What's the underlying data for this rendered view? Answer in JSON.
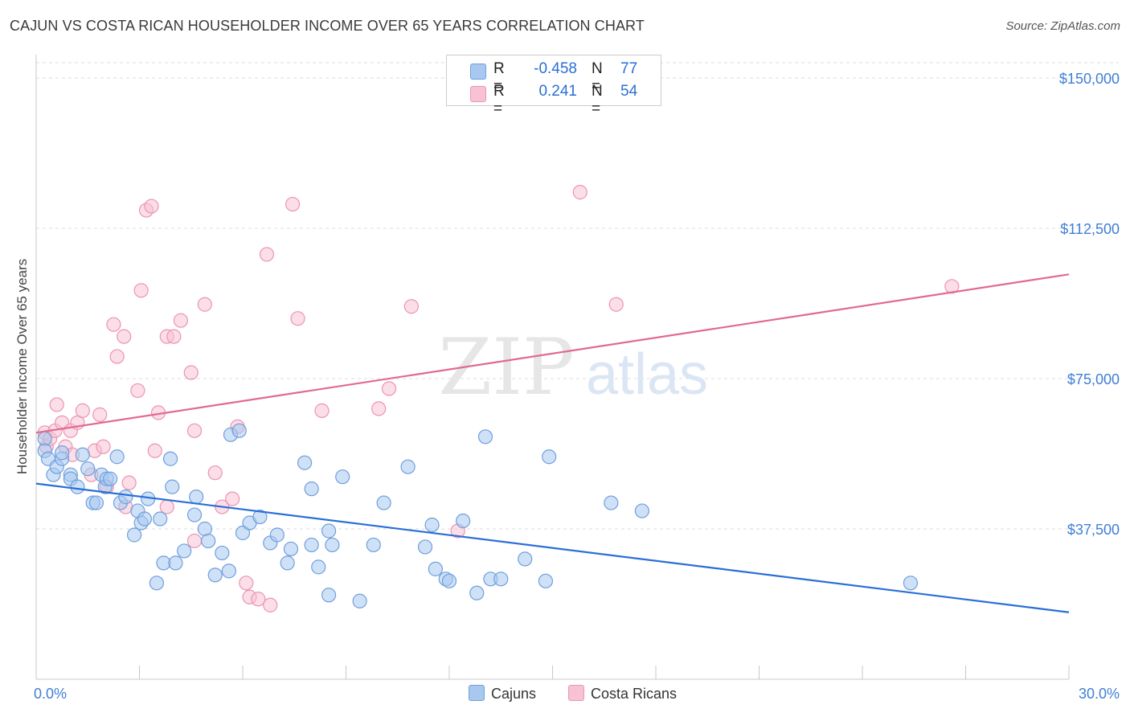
{
  "title": "CAJUN VS COSTA RICAN HOUSEHOLDER INCOME OVER 65 YEARS CORRELATION CHART",
  "source": "Source: ZipAtlas.com",
  "watermark": {
    "zip": "ZIP",
    "atlas": "atlas"
  },
  "colors": {
    "cajun_fill": "#a8c8f0",
    "cajun_stroke": "#6f9fdc",
    "cajun_line": "#2a6fd6",
    "costa_fill": "#f7c3d3",
    "costa_stroke": "#ec94b2",
    "costa_line": "#e06a90",
    "axis_text": "#3f7fd6",
    "grid": "#dddddd"
  },
  "stats": {
    "rows": [
      {
        "r_label": "R =",
        "r_value": "-0.458",
        "n_label": "N =",
        "n_value": "77"
      },
      {
        "r_label": "R =",
        "r_value": "0.241",
        "n_label": "N =",
        "n_value": "54"
      }
    ]
  },
  "legend": {
    "items": [
      {
        "label": "Cajuns"
      },
      {
        "label": "Costa Ricans"
      }
    ]
  },
  "chart_data": {
    "type": "scatter",
    "title": "CAJUN VS COSTA RICAN HOUSEHOLDER INCOME OVER 65 YEARS CORRELATION CHART",
    "xlabel": "",
    "ylabel": "Householder Income Over 65 years",
    "xlim": [
      0,
      30
    ],
    "ylim": [
      0,
      150000
    ],
    "x_tick_labels": [
      "0.0%",
      "30.0%"
    ],
    "y_ticks": [
      37500,
      75000,
      112500,
      150000
    ],
    "y_tick_labels": [
      "$37,500",
      "$75,000",
      "$112,500",
      "$150,000"
    ],
    "grid": true,
    "legend_position": "bottom-center",
    "series": [
      {
        "name": "Cajuns",
        "trend": {
          "x": [
            0,
            30
          ],
          "y": [
            48800,
            16700
          ]
        },
        "points": [
          [
            0.25,
            60000
          ],
          [
            0.25,
            57000
          ],
          [
            0.35,
            55000
          ],
          [
            0.5,
            51000
          ],
          [
            0.6,
            53000
          ],
          [
            0.75,
            55000
          ],
          [
            0.75,
            56500
          ],
          [
            1.0,
            51000
          ],
          [
            1.0,
            50000
          ],
          [
            1.2,
            48000
          ],
          [
            1.35,
            56000
          ],
          [
            1.5,
            52500
          ],
          [
            1.65,
            44000
          ],
          [
            1.75,
            44000
          ],
          [
            1.9,
            51000
          ],
          [
            2.0,
            48000
          ],
          [
            2.05,
            50000
          ],
          [
            2.15,
            50000
          ],
          [
            2.35,
            55500
          ],
          [
            2.45,
            44000
          ],
          [
            2.6,
            45500
          ],
          [
            2.85,
            36000
          ],
          [
            2.95,
            42000
          ],
          [
            3.05,
            39000
          ],
          [
            3.15,
            40000
          ],
          [
            3.25,
            45000
          ],
          [
            3.5,
            24000
          ],
          [
            3.6,
            40000
          ],
          [
            3.7,
            29000
          ],
          [
            3.9,
            55000
          ],
          [
            3.95,
            48000
          ],
          [
            4.05,
            29000
          ],
          [
            4.3,
            32000
          ],
          [
            4.6,
            41000
          ],
          [
            4.65,
            45500
          ],
          [
            4.9,
            37500
          ],
          [
            5.0,
            34500
          ],
          [
            5.2,
            26000
          ],
          [
            5.4,
            31500
          ],
          [
            5.65,
            61000
          ],
          [
            5.9,
            62000
          ],
          [
            5.6,
            27000
          ],
          [
            6.0,
            36500
          ],
          [
            6.2,
            39000
          ],
          [
            6.5,
            40500
          ],
          [
            6.8,
            34000
          ],
          [
            7.0,
            36000
          ],
          [
            7.3,
            29000
          ],
          [
            7.4,
            32500
          ],
          [
            7.8,
            54000
          ],
          [
            8.0,
            47500
          ],
          [
            8.2,
            28000
          ],
          [
            8.5,
            37000
          ],
          [
            8.0,
            33500
          ],
          [
            8.6,
            33500
          ],
          [
            8.9,
            50500
          ],
          [
            8.5,
            21000
          ],
          [
            9.4,
            19500
          ],
          [
            9.8,
            33500
          ],
          [
            10.1,
            44000
          ],
          [
            10.8,
            53000
          ],
          [
            11.3,
            33000
          ],
          [
            11.5,
            38500
          ],
          [
            11.6,
            27500
          ],
          [
            11.9,
            25000
          ],
          [
            12.0,
            24500
          ],
          [
            12.4,
            39500
          ],
          [
            12.8,
            21500
          ],
          [
            13.05,
            60500
          ],
          [
            13.2,
            25000
          ],
          [
            13.5,
            25000
          ],
          [
            14.2,
            30000
          ],
          [
            14.8,
            24500
          ],
          [
            14.9,
            55500
          ],
          [
            16.7,
            44000
          ],
          [
            17.6,
            42000
          ],
          [
            25.4,
            24000
          ]
        ]
      },
      {
        "name": "Costa Ricans",
        "trend": {
          "x": [
            0,
            30
          ],
          "y": [
            61500,
            101000
          ]
        },
        "points": [
          [
            0.25,
            61500
          ],
          [
            0.3,
            58000
          ],
          [
            0.4,
            60000
          ],
          [
            0.55,
            62000
          ],
          [
            0.6,
            68500
          ],
          [
            0.75,
            64000
          ],
          [
            0.85,
            58000
          ],
          [
            1.0,
            62000
          ],
          [
            1.05,
            56000
          ],
          [
            1.2,
            64000
          ],
          [
            1.35,
            67000
          ],
          [
            1.6,
            51000
          ],
          [
            1.7,
            57000
          ],
          [
            1.85,
            66000
          ],
          [
            1.95,
            58000
          ],
          [
            2.05,
            48000
          ],
          [
            2.25,
            88500
          ],
          [
            2.35,
            80500
          ],
          [
            2.55,
            85500
          ],
          [
            2.6,
            43000
          ],
          [
            2.7,
            49000
          ],
          [
            2.95,
            72000
          ],
          [
            3.05,
            97000
          ],
          [
            3.2,
            117000
          ],
          [
            3.35,
            118000
          ],
          [
            3.45,
            57000
          ],
          [
            3.55,
            66500
          ],
          [
            3.8,
            43000
          ],
          [
            3.8,
            85500
          ],
          [
            4.0,
            85500
          ],
          [
            4.2,
            89500
          ],
          [
            4.5,
            76500
          ],
          [
            4.6,
            62000
          ],
          [
            4.6,
            34500
          ],
          [
            4.9,
            93500
          ],
          [
            5.2,
            51500
          ],
          [
            5.4,
            43000
          ],
          [
            5.7,
            45000
          ],
          [
            5.85,
            63000
          ],
          [
            6.1,
            24000
          ],
          [
            6.2,
            20500
          ],
          [
            6.45,
            20000
          ],
          [
            6.7,
            106000
          ],
          [
            6.8,
            18500
          ],
          [
            7.45,
            118500
          ],
          [
            7.6,
            90000
          ],
          [
            8.3,
            67000
          ],
          [
            9.95,
            67500
          ],
          [
            10.25,
            72500
          ],
          [
            10.9,
            93000
          ],
          [
            12.25,
            37000
          ],
          [
            15.8,
            121500
          ],
          [
            16.85,
            93500
          ],
          [
            26.6,
            98000
          ]
        ]
      }
    ]
  }
}
